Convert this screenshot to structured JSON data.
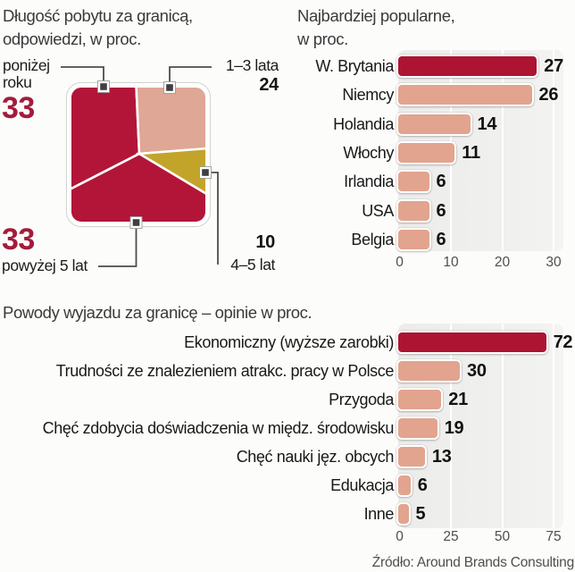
{
  "page": {
    "background": "#fcfcfb",
    "source": "Źródło: Around Brands Consulting"
  },
  "palette": {
    "dark_red": "#ac1432",
    "salmon": "#e2a48e",
    "pie_pink": "#dfa795",
    "gold": "#c2a42a",
    "big_number_red": "#a31b3b",
    "plot_bg": "#ececeb",
    "leader_gray": "#4c4c4c",
    "marker_dark": "#3f3f3f",
    "tick_gray": "#4f4f4f"
  },
  "chart_data": [
    {
      "id": "stay-length-pie",
      "type": "pie",
      "shape": "rounded-square",
      "title": "Długość pobytu za granicą,",
      "title_line2": "odpowiedzi, w proc.",
      "categories": [
        "poniżej roku",
        "1–3 lata",
        "4–5 lat",
        "powyżej 5 lat"
      ],
      "values": [
        33,
        24,
        10,
        33
      ],
      "colors": [
        "#b21538",
        "#dfa795",
        "#c2a42a",
        "#b21538"
      ],
      "callouts": {
        "ponizej_line1": "poniżej",
        "ponizej_line2": "roku",
        "ponizej_value": "33",
        "lata13_label": "1–3 lata",
        "lata13_value": "24",
        "lat45_label": "4–5 lat",
        "lat45_value": "10",
        "powyzej_label": "powyżej 5 lat",
        "powyzej_value": "33"
      }
    },
    {
      "id": "most-popular-countries",
      "type": "bar",
      "orientation": "horizontal",
      "title": "Najbardziej popularne,",
      "title_line2": "w proc.",
      "categories": [
        "W. Brytania",
        "Niemcy",
        "Holandia",
        "Włochy",
        "Irlandia",
        "USA",
        "Belgia"
      ],
      "values": [
        27,
        26,
        14,
        11,
        6,
        6,
        6
      ],
      "colors": [
        "#ac1432",
        "#e2a48e",
        "#e2a48e",
        "#e2a48e",
        "#e2a48e",
        "#e2a48e",
        "#e2a48e"
      ],
      "xlim": [
        0,
        30
      ],
      "ticks": [
        "0",
        "10",
        "20",
        "30"
      ],
      "grid": true,
      "legend": "none"
    },
    {
      "id": "reasons-for-leaving",
      "type": "bar",
      "orientation": "horizontal",
      "title": "Powody wyjazdu za granicę – opinie w proc.",
      "categories": [
        "Ekonomiczny (wyższe zarobki)",
        "Trudności ze znalezieniem atrakc. pracy w Polsce",
        "Przygoda",
        "Chęć zdobycia doświadczenia w międz. środowisku",
        "Chęć nauki jęz. obcych",
        "Edukacja",
        "Inne"
      ],
      "values": [
        72,
        30,
        21,
        19,
        13,
        6,
        5
      ],
      "colors": [
        "#ac1432",
        "#e2a48e",
        "#e2a48e",
        "#e2a48e",
        "#e2a48e",
        "#e2a48e",
        "#e2a48e"
      ],
      "xlim": [
        0,
        75
      ],
      "ticks": [
        "0",
        "25",
        "50",
        "75"
      ],
      "grid": true,
      "legend": "none"
    }
  ]
}
